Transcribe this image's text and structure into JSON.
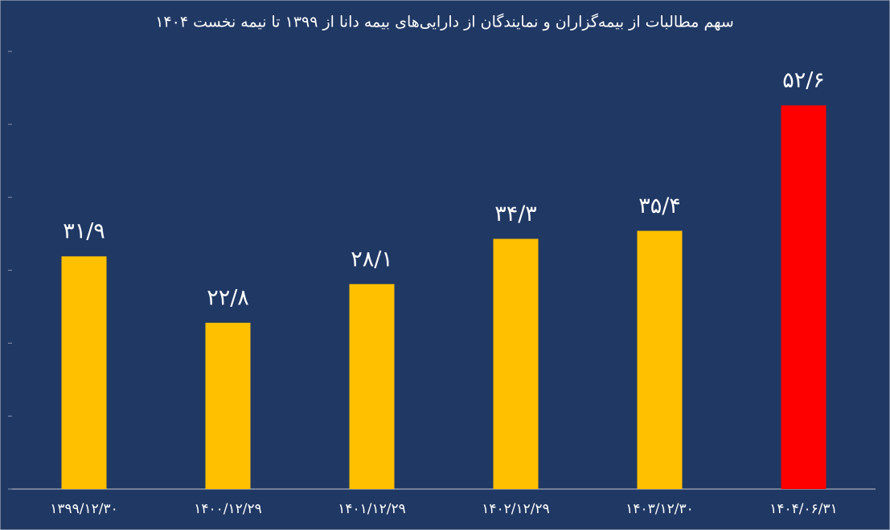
{
  "chart_data": {
    "type": "bar",
    "title": "سهم مطالبات از بیمه‌گزاران و نمایندگان از دارایی‌های بیمه دانا از ۱۳۹۹ تا نیمه نخست ۱۴۰۴",
    "categories": [
      "۱۳۹۹/۱۲/۳۰",
      "۱۴۰۰/۱۲/۲۹",
      "۱۴۰۱/۱۲/۲۹",
      "۱۴۰۲/۱۲/۲۹",
      "۱۴۰۳/۱۲/۳۰",
      "۱۴۰۴/۰۶/۳۱"
    ],
    "values": [
      31.9,
      22.8,
      28.1,
      34.3,
      35.4,
      52.6
    ],
    "value_labels": [
      "۳۱/۹",
      "۲۲/۸",
      "۲۸/۱",
      "۳۴/۳",
      "۳۵/۴",
      "۵۲/۶"
    ],
    "colors": [
      "#ffc000",
      "#ffc000",
      "#ffc000",
      "#ffc000",
      "#ffc000",
      "#ff0000"
    ],
    "ylim": [
      0,
      60
    ],
    "yticks": [
      0,
      10,
      20,
      30,
      40,
      50,
      60
    ],
    "grid": false
  }
}
